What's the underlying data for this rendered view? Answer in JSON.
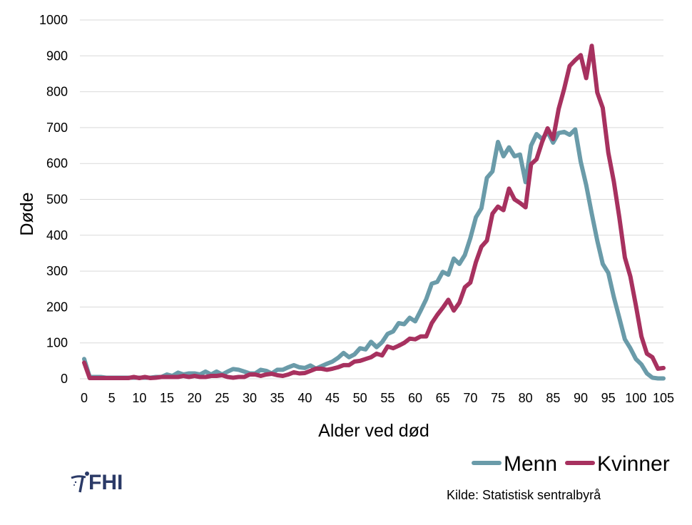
{
  "chart_data": {
    "type": "line",
    "xlabel": "Alder ved død",
    "ylabel": "Døde",
    "xlim": [
      0,
      105
    ],
    "ylim": [
      0,
      1000
    ],
    "y_ticks": [
      0,
      100,
      200,
      300,
      400,
      500,
      600,
      700,
      800,
      900,
      1000
    ],
    "x_ticks": [
      0,
      5,
      10,
      15,
      20,
      25,
      30,
      35,
      40,
      45,
      50,
      55,
      60,
      65,
      70,
      75,
      80,
      85,
      90,
      95,
      100,
      105
    ],
    "grid": "horizontal",
    "legend_position": "bottom-right",
    "series": [
      {
        "name": "Menn",
        "color": "#6a9ba9",
        "x": [
          0,
          1,
          2,
          3,
          4,
          5,
          6,
          7,
          8,
          9,
          10,
          11,
          12,
          13,
          14,
          15,
          16,
          17,
          18,
          19,
          20,
          21,
          22,
          23,
          24,
          25,
          26,
          27,
          28,
          29,
          30,
          31,
          32,
          33,
          34,
          35,
          36,
          37,
          38,
          39,
          40,
          41,
          42,
          43,
          44,
          45,
          46,
          47,
          48,
          49,
          50,
          51,
          52,
          53,
          54,
          55,
          56,
          57,
          58,
          59,
          60,
          61,
          62,
          63,
          64,
          65,
          66,
          67,
          68,
          69,
          70,
          71,
          72,
          73,
          74,
          75,
          76,
          77,
          78,
          79,
          80,
          81,
          82,
          83,
          84,
          85,
          86,
          87,
          88,
          89,
          90,
          91,
          92,
          93,
          94,
          95,
          96,
          97,
          98,
          99,
          100,
          101,
          102,
          103,
          104,
          105
        ],
        "values": [
          55,
          5,
          5,
          5,
          3,
          3,
          3,
          3,
          3,
          3,
          3,
          3,
          3,
          5,
          5,
          12,
          8,
          17,
          12,
          15,
          15,
          12,
          20,
          12,
          20,
          12,
          20,
          27,
          25,
          20,
          15,
          15,
          25,
          22,
          15,
          25,
          25,
          32,
          38,
          32,
          30,
          37,
          28,
          35,
          42,
          48,
          58,
          72,
          60,
          68,
          85,
          82,
          103,
          88,
          102,
          125,
          132,
          155,
          152,
          170,
          160,
          190,
          222,
          265,
          270,
          298,
          290,
          335,
          320,
          345,
          392,
          450,
          475,
          560,
          578,
          660,
          620,
          645,
          620,
          625,
          548,
          650,
          682,
          668,
          688,
          658,
          685,
          688,
          680,
          695,
          605,
          540,
          460,
          385,
          320,
          295,
          228,
          170,
          110,
          85,
          55,
          40,
          15,
          3,
          1,
          1
        ]
      },
      {
        "name": "Kvinner",
        "color": "#a7315f",
        "x": [
          0,
          1,
          2,
          3,
          4,
          5,
          6,
          7,
          8,
          9,
          10,
          11,
          12,
          13,
          14,
          15,
          16,
          17,
          18,
          19,
          20,
          21,
          22,
          23,
          24,
          25,
          26,
          27,
          28,
          29,
          30,
          31,
          32,
          33,
          34,
          35,
          36,
          37,
          38,
          39,
          40,
          41,
          42,
          43,
          44,
          45,
          46,
          47,
          48,
          49,
          50,
          51,
          52,
          53,
          54,
          55,
          56,
          57,
          58,
          59,
          60,
          61,
          62,
          63,
          64,
          65,
          66,
          67,
          68,
          69,
          70,
          71,
          72,
          73,
          74,
          75,
          76,
          77,
          78,
          79,
          80,
          81,
          82,
          83,
          84,
          85,
          86,
          87,
          88,
          89,
          90,
          91,
          92,
          93,
          94,
          95,
          96,
          97,
          98,
          99,
          100,
          101,
          102,
          103,
          104,
          105
        ],
        "values": [
          45,
          2,
          2,
          2,
          2,
          2,
          2,
          2,
          2,
          5,
          2,
          5,
          2,
          3,
          5,
          5,
          5,
          5,
          8,
          5,
          8,
          5,
          5,
          8,
          8,
          10,
          5,
          3,
          5,
          5,
          12,
          12,
          8,
          12,
          14,
          10,
          8,
          12,
          18,
          15,
          16,
          22,
          28,
          28,
          25,
          28,
          32,
          38,
          38,
          48,
          50,
          55,
          60,
          70,
          65,
          90,
          85,
          92,
          100,
          112,
          110,
          118,
          118,
          155,
          178,
          198,
          220,
          190,
          212,
          255,
          268,
          325,
          368,
          385,
          460,
          480,
          470,
          530,
          500,
          490,
          478,
          598,
          612,
          660,
          698,
          668,
          752,
          808,
          872,
          888,
          902,
          838,
          928,
          798,
          755,
          630,
          550,
          450,
          338,
          285,
          205,
          118,
          70,
          60,
          28,
          30
        ]
      }
    ],
    "legend": [
      "Menn",
      "Kvinner"
    ]
  },
  "source_text": "Kilde: Statistisk sentralbyrå",
  "logo": {
    "text": "FHI",
    "color": "#2b3a67",
    "icon": "fhi-logo-icon"
  }
}
